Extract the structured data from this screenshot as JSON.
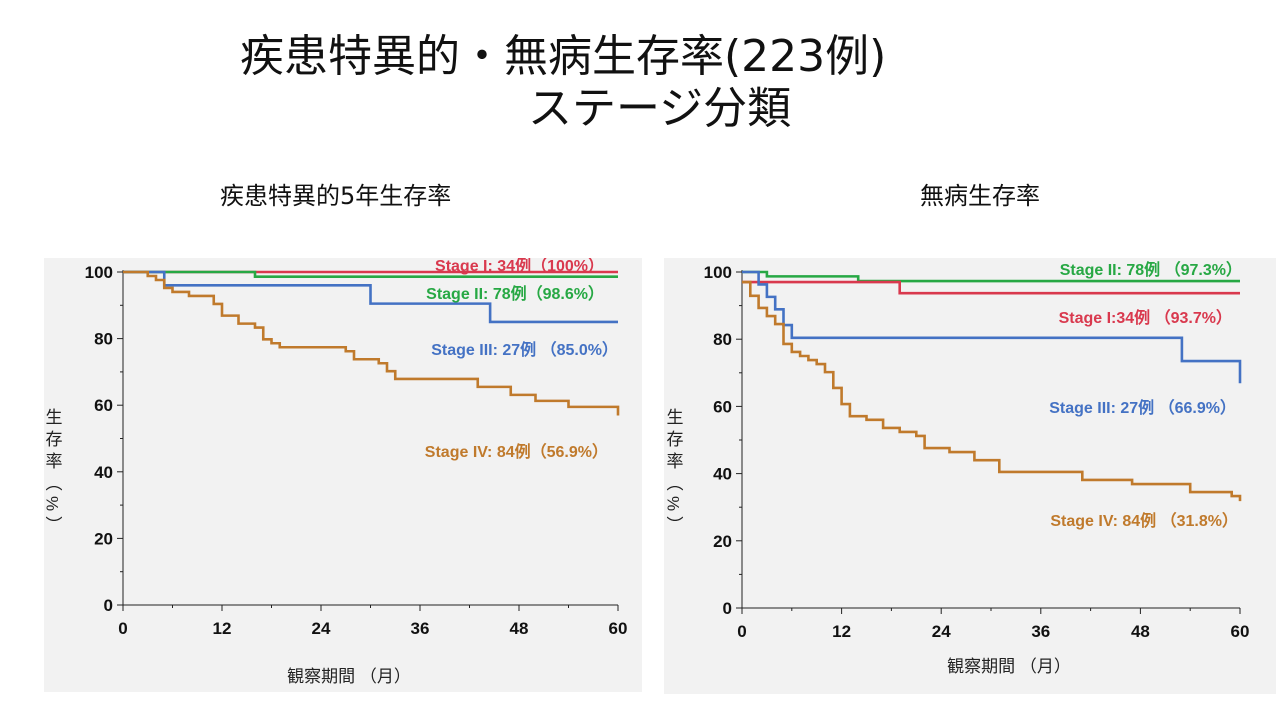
{
  "slide": {
    "title_line1": "疾患特異的・無病生存率(223例)",
    "title_line2": "ステージ分類"
  },
  "chart_data": [
    {
      "type": "line",
      "step": true,
      "title": "疾患特異的5年生存率",
      "xlabel": "観察期間 （月）",
      "ylabel": "生存率（%）",
      "xlim": [
        0,
        60
      ],
      "ylim": [
        0,
        100
      ],
      "xticks": [
        0,
        12,
        24,
        36,
        48,
        60
      ],
      "yticks": [
        0,
        20,
        40,
        60,
        80,
        100
      ],
      "grid": false,
      "series": [
        {
          "name": "Stage I",
          "label": "Stage I: 34例（100%）",
          "color": "#d9394e",
          "x": [
            0,
            60
          ],
          "y": [
            100,
            100
          ]
        },
        {
          "name": "Stage II",
          "label": "Stage II: 78例（98.6%）",
          "color": "#27a844",
          "x": [
            0,
            5,
            16,
            60
          ],
          "y": [
            100,
            100,
            98.6,
            98.6
          ]
        },
        {
          "name": "Stage III",
          "label": "Stage III: 27例 （85.0%）",
          "color": "#4472c4",
          "x": [
            0,
            5,
            30,
            44.5,
            60
          ],
          "y": [
            100,
            96,
            90.5,
            85,
            85
          ]
        },
        {
          "name": "Stage IV",
          "label": "Stage IV: 84例（56.9%）",
          "color": "#c07a2c",
          "x": [
            0,
            3,
            4,
            5,
            6,
            8,
            11,
            12,
            14,
            16,
            17,
            18,
            19,
            22,
            27,
            28,
            31,
            32,
            33,
            43,
            47,
            50,
            54,
            59,
            60
          ],
          "y": [
            100,
            98.8,
            97.6,
            95.2,
            94,
            92.8,
            90.4,
            86.9,
            84.5,
            83.3,
            79.8,
            78.6,
            77.4,
            77.4,
            76.2,
            73.8,
            72.6,
            70.2,
            67.9,
            65.5,
            63.1,
            61.3,
            59.5,
            59.5,
            56.9
          ]
        }
      ]
    },
    {
      "type": "line",
      "step": true,
      "title": "無病生存率",
      "xlabel": "観察期間 （月）",
      "ylabel": "生存率（%）",
      "xlim": [
        0,
        60
      ],
      "ylim": [
        0,
        100
      ],
      "xticks": [
        0,
        12,
        24,
        36,
        48,
        60
      ],
      "yticks": [
        0,
        20,
        40,
        60,
        80,
        100
      ],
      "grid": false,
      "series": [
        {
          "name": "Stage II",
          "label": "Stage II: 78例 （97.3%）",
          "color": "#27a844",
          "x": [
            0,
            3,
            14,
            60
          ],
          "y": [
            100,
            98.7,
            97.3,
            97.3
          ]
        },
        {
          "name": "Stage I",
          "label": "Stage I:34例 （93.7%）",
          "color": "#d9394e",
          "x": [
            0,
            3,
            19,
            60
          ],
          "y": [
            97,
            97,
            93.7,
            93.7
          ]
        },
        {
          "name": "Stage III",
          "label": "Stage III: 27例 （66.9%）",
          "color": "#4472c4",
          "x": [
            0,
            2,
            3,
            4,
            5,
            6,
            51,
            53,
            60
          ],
          "y": [
            100,
            96.3,
            92.6,
            88.9,
            84.2,
            80.4,
            80.4,
            73.5,
            66.9
          ]
        },
        {
          "name": "Stage IV",
          "label": "Stage IV: 84例 （31.8%）",
          "color": "#c07a2c",
          "x": [
            0,
            1,
            2,
            3,
            4,
            5,
            6,
            7,
            8,
            9,
            10,
            11,
            12,
            13,
            15,
            17,
            19,
            21,
            22,
            25,
            28,
            31,
            41,
            47,
            54,
            59,
            60
          ],
          "y": [
            97,
            92.9,
            89.3,
            86.9,
            84.5,
            78.6,
            76.2,
            75,
            73.8,
            72.6,
            70.2,
            65.5,
            60.7,
            57.1,
            56,
            53.6,
            52.4,
            51.2,
            47.6,
            46.4,
            44,
            40.5,
            38.1,
            36.9,
            34.5,
            33.3,
            31.8
          ]
        }
      ]
    }
  ]
}
